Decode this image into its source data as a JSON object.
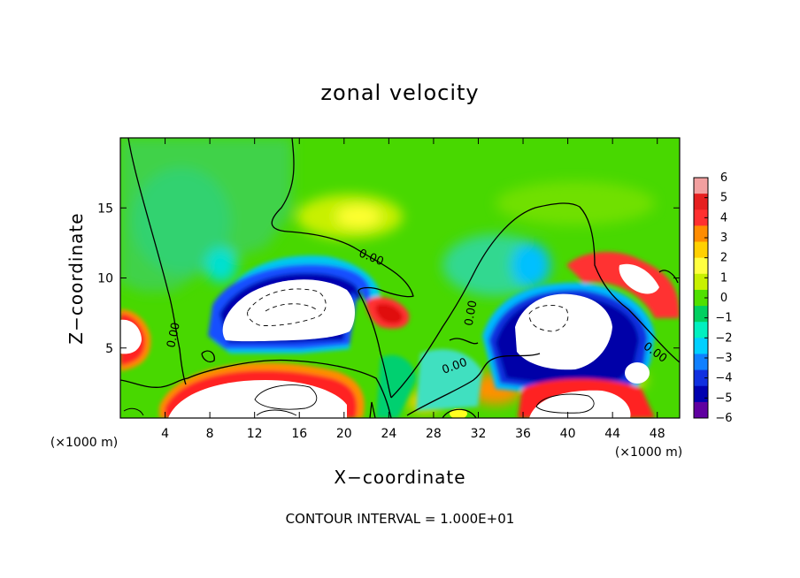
{
  "chart_data": {
    "type": "heatmap",
    "title": "zonal velocity",
    "xlabel": "X−coordinate",
    "ylabel": "Z−coordinate",
    "x_unit_left": "(×1000 m)",
    "x_unit_right": "(×1000 m)",
    "xlim": [
      0,
      50
    ],
    "ylim": [
      0,
      20
    ],
    "xticks": [
      "4",
      "8",
      "12",
      "16",
      "20",
      "24",
      "28",
      "32",
      "36",
      "40",
      "44",
      "48"
    ],
    "xtick_values": [
      4,
      8,
      12,
      16,
      20,
      24,
      28,
      32,
      36,
      40,
      44,
      48
    ],
    "yticks": [
      "5",
      "10",
      "15"
    ],
    "ytick_values": [
      5,
      10,
      15
    ],
    "contour_labels": [
      "0.00",
      "0.00",
      "0.00",
      "0.00",
      "0.00"
    ],
    "footnote": "CONTOUR INTERVAL = 1.000E+01",
    "colorbar": {
      "labels": [
        "6",
        "5",
        "4",
        "3",
        "2",
        "1",
        "0",
        "−1",
        "−2",
        "−3",
        "−4",
        "−5",
        "−6"
      ],
      "colors": [
        "#f2a0a0",
        "#e62020",
        "#ff3030",
        "#ff8c00",
        "#ffd000",
        "#ffff40",
        "#c8f000",
        "#50e000",
        "#00d060",
        "#00f0c0",
        "#00d0ff",
        "#1080ff",
        "#1030e0",
        "#0000b0",
        "#6000a0"
      ]
    }
  }
}
